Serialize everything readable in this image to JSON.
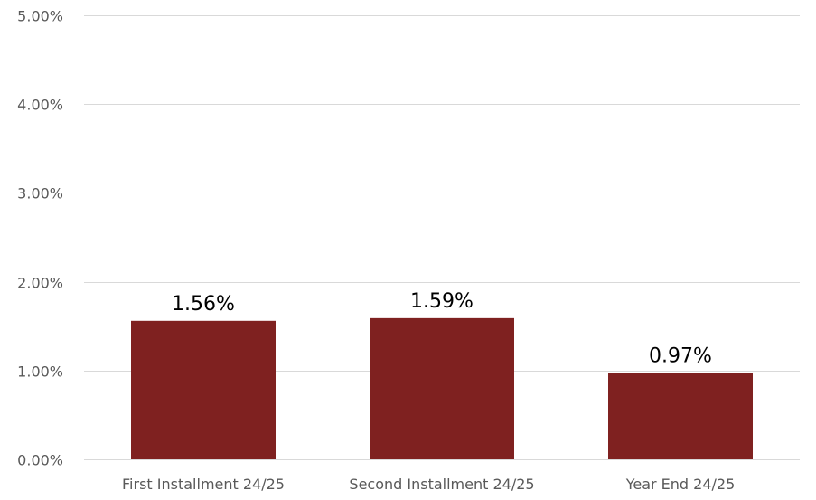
{
  "chart_data": {
    "type": "bar",
    "title": "",
    "xlabel": "",
    "ylabel": "",
    "categories": [
      "First Installment 24/25",
      "Second Installment 24/25",
      "Year End 24/25"
    ],
    "values": [
      1.56,
      1.59,
      0.97
    ],
    "data_labels": [
      "1.56%",
      "1.59%",
      "0.97%"
    ],
    "ylim": [
      0,
      5
    ],
    "y_ticks": [
      0,
      1,
      2,
      3,
      4,
      5
    ],
    "y_tick_labels": [
      "0.00%",
      "1.00%",
      "2.00%",
      "3.00%",
      "4.00%",
      "5.00%"
    ],
    "grid": true,
    "legend": "none",
    "colors": {
      "bar": "#7f2120",
      "gridline": "#d9d9d9",
      "axis_text": "#595959",
      "data_label": "#000000"
    }
  }
}
